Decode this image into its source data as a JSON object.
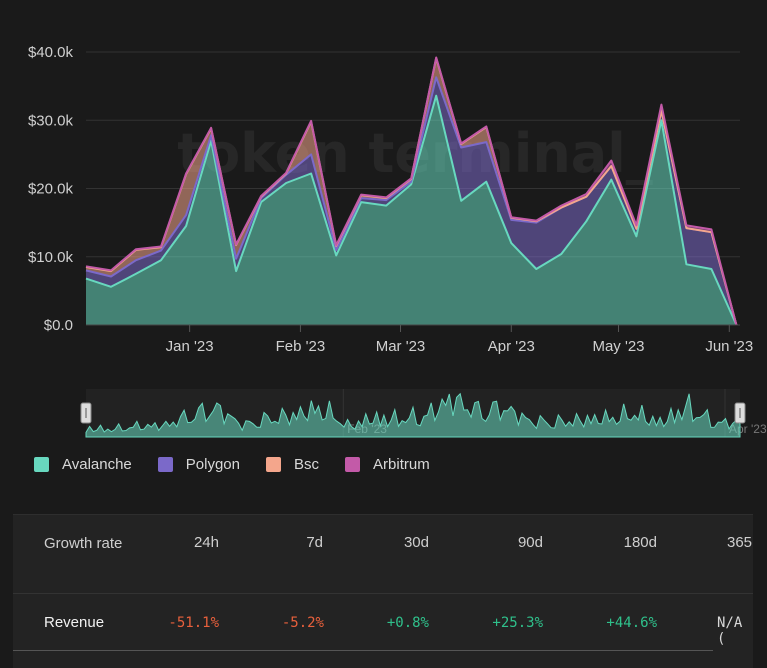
{
  "watermark": "token terminal_",
  "colors": {
    "avalanche": "#68d8bf",
    "polygon": "#7b69c9",
    "bsc": "#f4a68c",
    "arbitrum": "#c35aa8",
    "negative": "#e8603c",
    "positive": "#2fc08b"
  },
  "chart_data": {
    "type": "area",
    "stacked": true,
    "y_ticks": [
      "$0.0",
      "$10.0k",
      "$20.0k",
      "$30.0k",
      "$40.0k"
    ],
    "ylim": [
      0,
      40000
    ],
    "x_ticks": [
      "Jan '23",
      "Feb '23",
      "Mar '23",
      "Apr '23",
      "May '23",
      "Jun '23"
    ],
    "x_tick_dates": [
      "2023-01-01",
      "2023-02-01",
      "2023-03-01",
      "2023-04-01",
      "2023-05-01",
      "2023-06-01"
    ],
    "xlim": [
      "2022-12-03",
      "2023-06-04"
    ],
    "x": [
      "2022-12-03",
      "2022-12-10",
      "2022-12-17",
      "2022-12-24",
      "2022-12-31",
      "2023-01-07",
      "2023-01-14",
      "2023-01-21",
      "2023-01-28",
      "2023-02-04",
      "2023-02-11",
      "2023-02-18",
      "2023-02-25",
      "2023-03-04",
      "2023-03-11",
      "2023-03-18",
      "2023-03-25",
      "2023-04-01",
      "2023-04-08",
      "2023-04-15",
      "2023-04-22",
      "2023-04-29",
      "2023-05-06",
      "2023-05-13",
      "2023-05-20",
      "2023-05-27",
      "2023-06-03"
    ],
    "series": [
      {
        "name": "Avalanche",
        "values": [
          6800,
          5600,
          7500,
          9500,
          14500,
          27000,
          7900,
          18000,
          20800,
          22200,
          10200,
          18000,
          17500,
          20600,
          33600,
          18200,
          21000,
          12000,
          8200,
          10400,
          15200,
          21300,
          13000,
          30000,
          8900,
          8200,
          0
        ]
      },
      {
        "name": "Polygon",
        "values": [
          1200,
          1500,
          2000,
          1400,
          1600,
          800,
          1800,
          600,
          1200,
          2800,
          800,
          600,
          800,
          400,
          2700,
          7800,
          5800,
          3400,
          6800,
          6800,
          3600,
          2000,
          1100,
          1400,
          5300,
          5400,
          0
        ]
      },
      {
        "name": "Bsc",
        "values": [
          500,
          800,
          1500,
          500,
          6000,
          1000,
          2000,
          200,
          200,
          4800,
          600,
          400,
          300,
          400,
          2800,
          500,
          2200,
          300,
          200,
          0,
          0,
          0,
          0,
          0,
          0,
          0,
          0
        ]
      },
      {
        "name": "Arbitrum",
        "values": [
          100,
          100,
          100,
          100,
          100,
          100,
          100,
          100,
          100,
          100,
          100,
          100,
          100,
          100,
          100,
          100,
          100,
          100,
          100,
          300,
          400,
          800,
          500,
          900,
          400,
          400,
          0
        ]
      }
    ],
    "legend_position": "bottom-left",
    "grid": true
  },
  "table": {
    "header_label": "Growth rate",
    "columns": [
      "24h",
      "7d",
      "30d",
      "90d",
      "180d",
      "365"
    ],
    "rows": [
      {
        "name": "Revenue",
        "values": [
          "-51.1%",
          "-5.2%",
          "+0.8%",
          "+25.3%",
          "+44.6%",
          "N/A ("
        ]
      }
    ]
  }
}
